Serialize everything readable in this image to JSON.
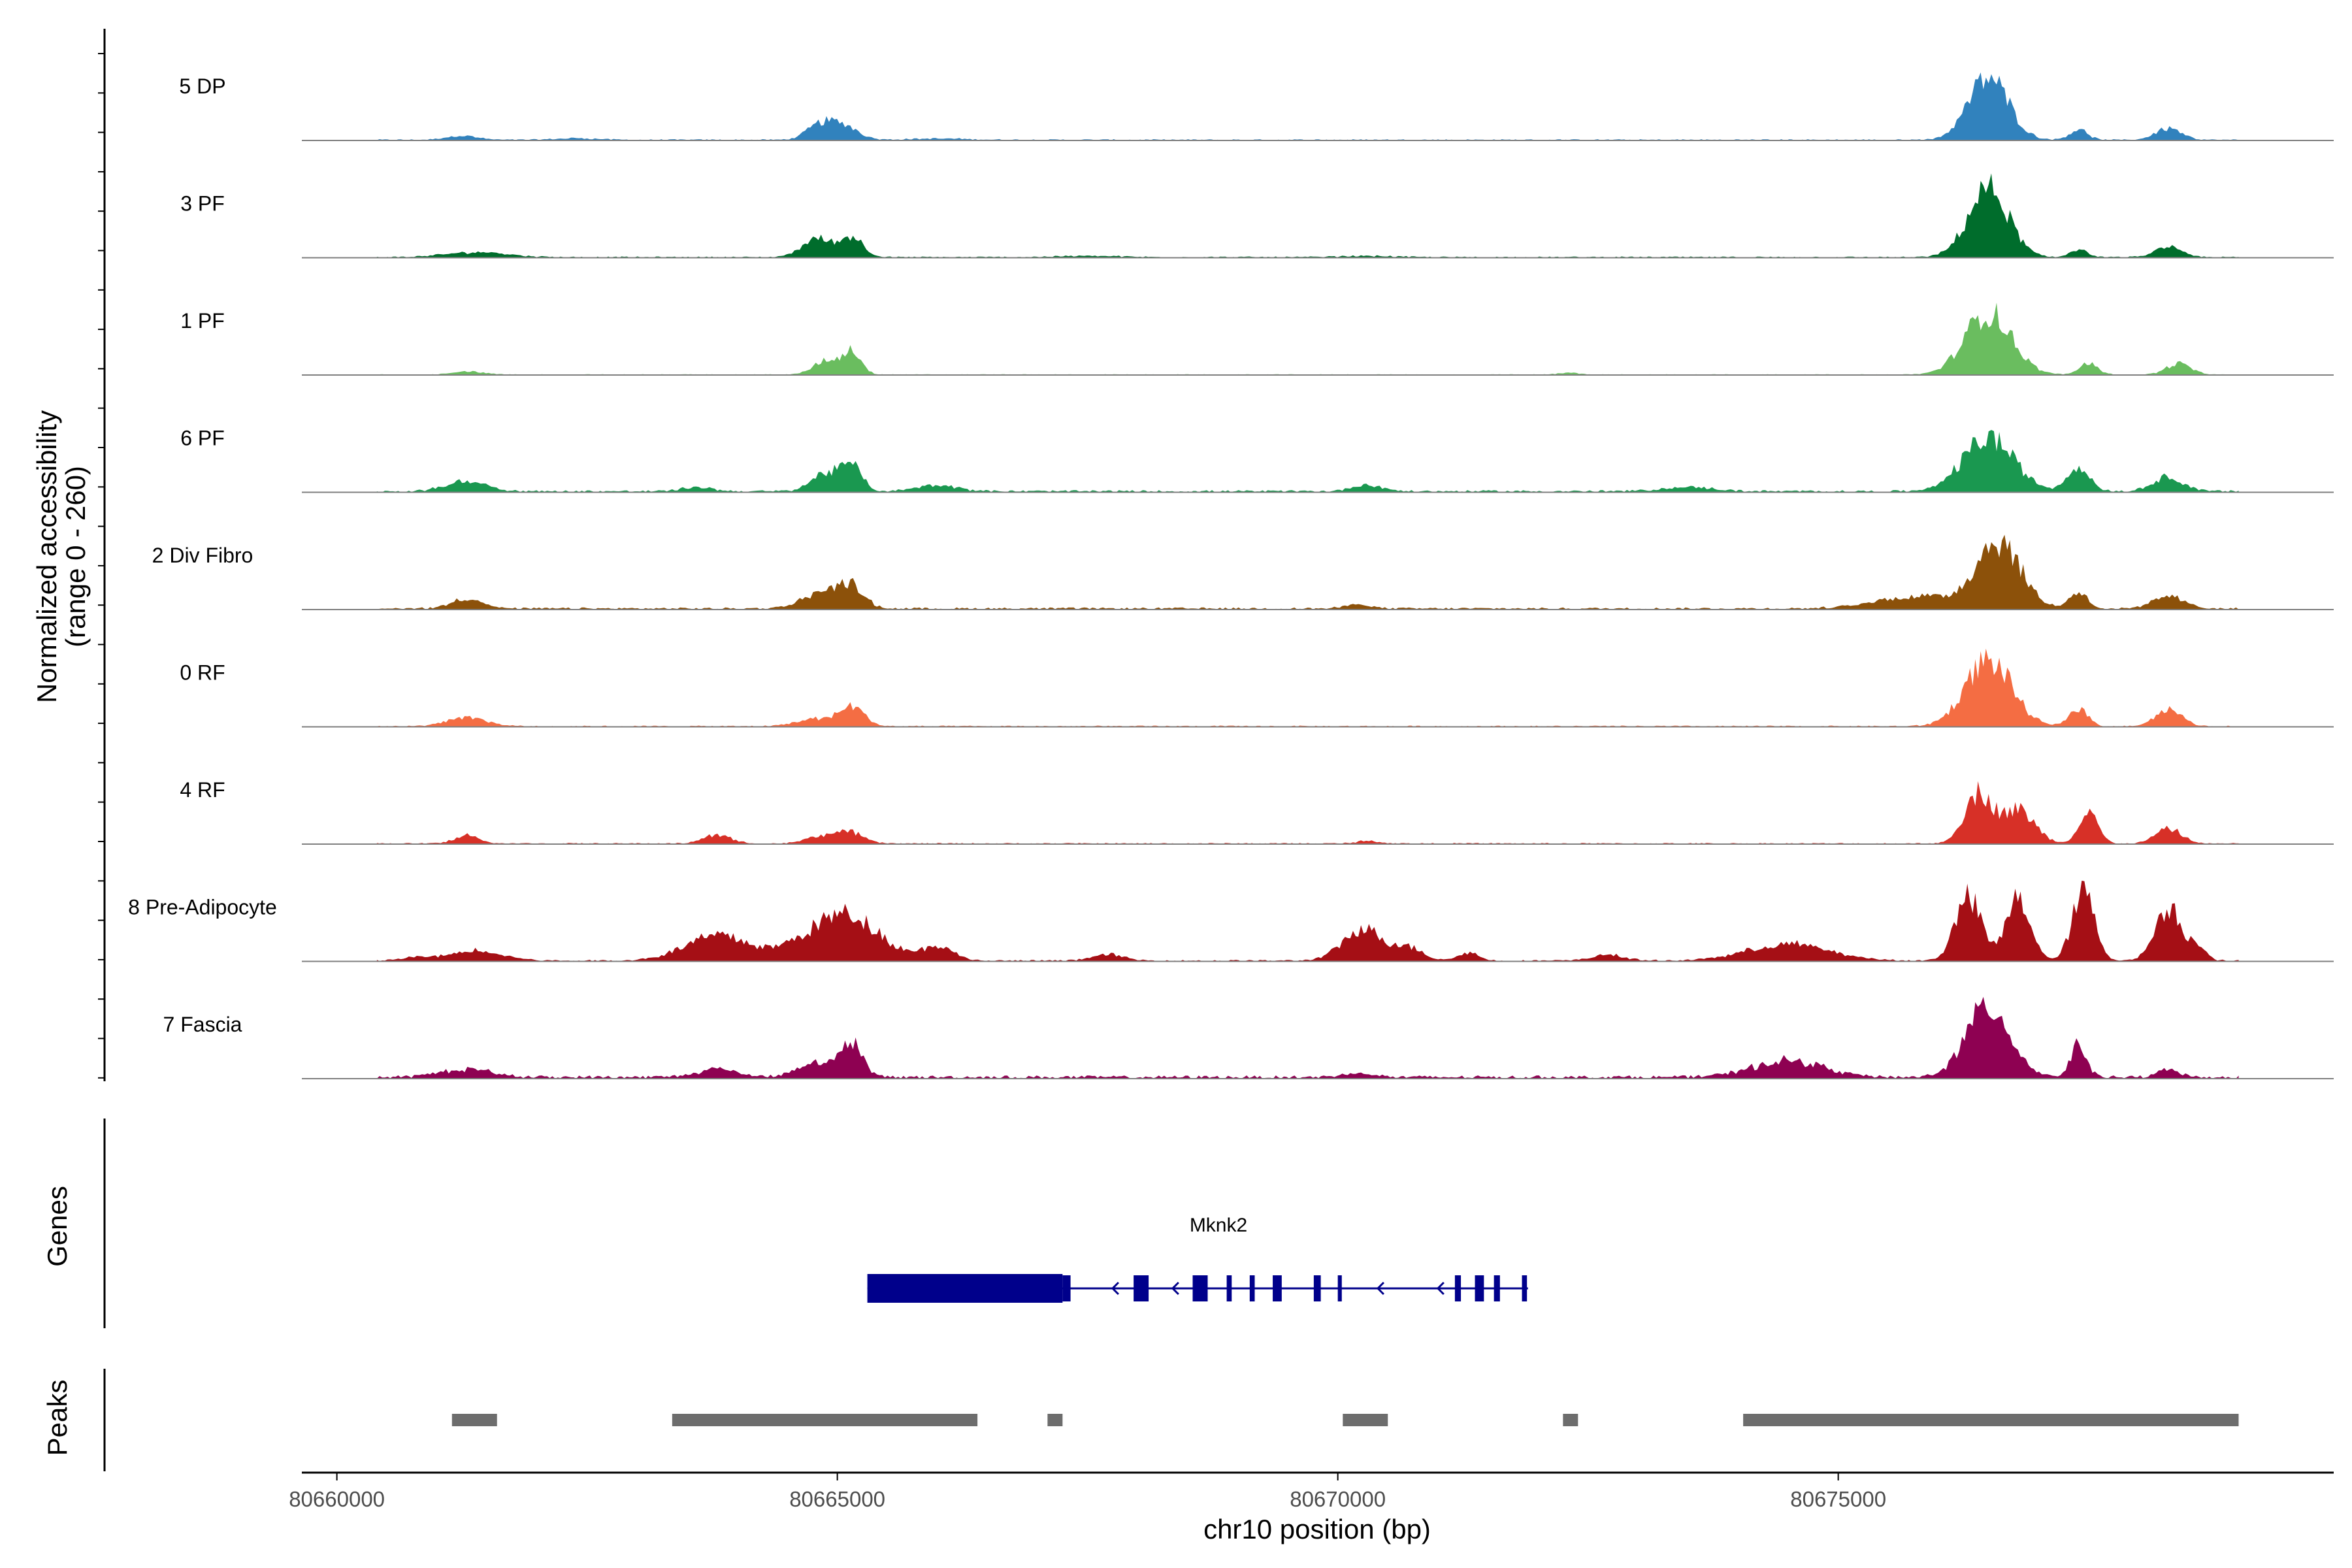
{
  "chart_data": {
    "type": "area",
    "y_axis_title_line1": "Normalized accessibility",
    "y_axis_title_line2": "(range 0 - 260)",
    "ylim": [
      0,
      260
    ],
    "xlabel": "chr10 position (bp)",
    "xlim": [
      80659650,
      80679950
    ],
    "xticks": [
      80660000,
      80665000,
      80670000,
      80675000
    ],
    "xtick_labels": [
      "80660000",
      "80665000",
      "80670000",
      "80675000"
    ],
    "data_range": [
      80660400,
      80679000
    ],
    "series": [
      {
        "name": "5 DP",
        "color": "#3182bd",
        "noise": 0.012,
        "peaks": [
          [
            80661250,
            150,
            10
          ],
          [
            80662400,
            200,
            4
          ],
          [
            80664850,
            140,
            40
          ],
          [
            80665100,
            130,
            28
          ],
          [
            80666000,
            300,
            3
          ],
          [
            80676500,
            200,
            150
          ],
          [
            80677400,
            90,
            25
          ],
          [
            80678300,
            130,
            28
          ]
        ]
      },
      {
        "name": "3 PF",
        "color": "#006d2c",
        "noise": 0.012,
        "peaks": [
          [
            80661400,
            300,
            12
          ],
          [
            80664800,
            150,
            45
          ],
          [
            80665150,
            110,
            48
          ],
          [
            80667500,
            300,
            3
          ],
          [
            80670300,
            250,
            3
          ],
          [
            80676500,
            200,
            165
          ],
          [
            80677400,
            80,
            20
          ],
          [
            80678300,
            130,
            25
          ]
        ]
      },
      {
        "name": "1 PF",
        "color": "#6abd5f",
        "noise": 0.008,
        "peaks": [
          [
            80661300,
            150,
            8
          ],
          [
            80664900,
            130,
            35
          ],
          [
            80665150,
            90,
            55
          ],
          [
            80672300,
            100,
            5
          ],
          [
            80676500,
            230,
            150
          ],
          [
            80677500,
            90,
            28
          ],
          [
            80678400,
            120,
            27
          ]
        ]
      },
      {
        "name": "6 PF",
        "color": "#1a9850",
        "noise": 0.02,
        "peaks": [
          [
            80661300,
            200,
            25
          ],
          [
            80663600,
            150,
            10
          ],
          [
            80664900,
            150,
            45
          ],
          [
            80665150,
            100,
            55
          ],
          [
            80666000,
            200,
            15
          ],
          [
            80670300,
            150,
            15
          ],
          [
            80673500,
            250,
            10
          ],
          [
            80676500,
            250,
            130
          ],
          [
            80677400,
            110,
            60
          ],
          [
            80678300,
            150,
            35
          ]
        ]
      },
      {
        "name": "2 Div Fibro",
        "color": "#8c510a",
        "noise": 0.02,
        "peaks": [
          [
            80661300,
            150,
            25
          ],
          [
            80664850,
            200,
            40
          ],
          [
            80665150,
            120,
            50
          ],
          [
            80670200,
            120,
            10
          ],
          [
            80675800,
            400,
            30
          ],
          [
            80676600,
            220,
            160
          ],
          [
            80677400,
            90,
            40
          ],
          [
            80678300,
            150,
            30
          ]
        ]
      },
      {
        "name": "0 RF",
        "color": "#f46d43",
        "noise": 0.012,
        "peaks": [
          [
            80661300,
            200,
            20
          ],
          [
            80664800,
            200,
            18
          ],
          [
            80665150,
            120,
            45
          ],
          [
            80676500,
            230,
            160
          ],
          [
            80677400,
            90,
            45
          ],
          [
            80678300,
            130,
            40
          ]
        ]
      },
      {
        "name": "4 RF",
        "color": "#d73027",
        "noise": 0.012,
        "peaks": [
          [
            80661300,
            120,
            20
          ],
          [
            80663800,
            140,
            20
          ],
          [
            80664850,
            150,
            20
          ],
          [
            80665150,
            130,
            25
          ],
          [
            80670300,
            120,
            6
          ],
          [
            80676400,
            140,
            120
          ],
          [
            80676800,
            160,
            80
          ],
          [
            80677500,
            90,
            85
          ],
          [
            80678300,
            130,
            35
          ]
        ]
      },
      {
        "name": "8 Pre-Adipocyte",
        "color": "#a50f15",
        "noise": 0.015,
        "peaks": [
          [
            80660800,
            150,
            8
          ],
          [
            80661400,
            250,
            25
          ],
          [
            80663800,
            320,
            60
          ],
          [
            80664900,
            350,
            65
          ],
          [
            80665200,
            300,
            60
          ],
          [
            80666000,
            150,
            35
          ],
          [
            80667700,
            150,
            15
          ],
          [
            80670250,
            200,
            75
          ],
          [
            80670700,
            150,
            30
          ],
          [
            80671300,
            100,
            20
          ],
          [
            80672700,
            150,
            15
          ],
          [
            80674500,
            400,
            40
          ],
          [
            80676300,
            130,
            150
          ],
          [
            80676800,
            120,
            150
          ],
          [
            80677450,
            110,
            165
          ],
          [
            80678300,
            130,
            130
          ],
          [
            80678600,
            80,
            35
          ]
        ]
      },
      {
        "name": "7 Fascia",
        "color": "#8e0152",
        "noise": 0.03,
        "peaks": [
          [
            80661300,
            250,
            20
          ],
          [
            80663800,
            200,
            20
          ],
          [
            80664800,
            200,
            35
          ],
          [
            80665150,
            100,
            80
          ],
          [
            80670200,
            150,
            10
          ],
          [
            80674500,
            350,
            40
          ],
          [
            80676500,
            220,
            170
          ],
          [
            80677400,
            80,
            75
          ],
          [
            80678300,
            100,
            20
          ]
        ]
      }
    ],
    "genes_track_label": "Genes",
    "gene": {
      "name": "Mknk2",
      "strand": "-",
      "start": 80665300,
      "end": 80671900,
      "color": "#00008b",
      "thick_exons": [
        [
          80665300,
          80667250
        ]
      ],
      "exons": [
        [
          80667250,
          80667330
        ],
        [
          80667960,
          80668110
        ],
        [
          80668550,
          80668700
        ],
        [
          80668890,
          80668940
        ],
        [
          80669120,
          80669170
        ],
        [
          80669350,
          80669440
        ],
        [
          80669760,
          80669830
        ],
        [
          80670000,
          80670040
        ],
        [
          80671170,
          80671230
        ],
        [
          80671370,
          80671460
        ],
        [
          80671560,
          80671620
        ],
        [
          80671840,
          80671890
        ]
      ],
      "arrows": [
        80667100,
        80667750,
        80668350,
        80670400,
        80671000
      ]
    },
    "peaks_track_label": "Peaks",
    "peaks_color": "#6d6d6d",
    "peak_regions": [
      [
        80661150,
        80661600
      ],
      [
        80663350,
        80666400
      ],
      [
        80667100,
        80667250
      ],
      [
        80670050,
        80670500
      ],
      [
        80672250,
        80672400
      ],
      [
        80674050,
        80679000
      ]
    ]
  }
}
